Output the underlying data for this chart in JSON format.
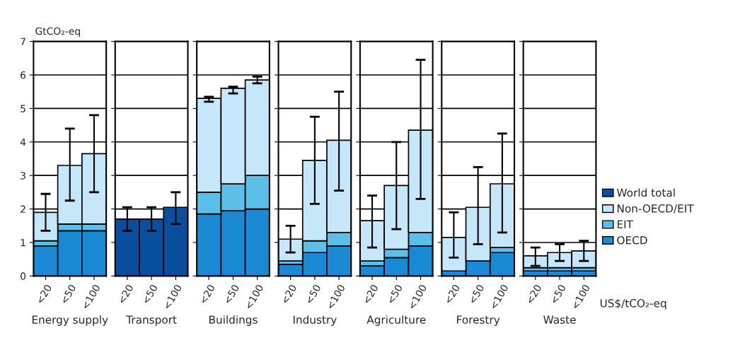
{
  "chart_data": [
    {
      "type": "bar",
      "stacked": true,
      "xlabel": "Energy supply",
      "ylabel": "GtCO₂-eq",
      "categories": [
        "<20",
        "<50",
        "<100"
      ],
      "ylim": [
        0,
        7
      ],
      "yticks": [
        0,
        1,
        2,
        3,
        4,
        5,
        6,
        7
      ],
      "grid": "y",
      "legend": "right",
      "series": [
        {
          "name": "OECD",
          "color": "#1a8ad4",
          "values": [
            0.9,
            1.35,
            1.35
          ]
        },
        {
          "name": "EIT",
          "color": "#5bbfe8",
          "values": [
            0.15,
            0.2,
            0.2
          ]
        },
        {
          "name": "Non-OECD/EIT",
          "color": "#c6e6fa",
          "values": [
            0.85,
            1.75,
            2.1
          ],
          "errors": [
            [
              1.35,
              2.45
            ],
            [
              2.25,
              4.4
            ],
            [
              2.5,
              4.8
            ]
          ]
        }
      ]
    },
    {
      "type": "bar",
      "stacked": true,
      "xlabel": "Transport",
      "categories": [
        "<20",
        "<50",
        "<100"
      ],
      "ylim": [
        0,
        7
      ],
      "yticks": [
        0,
        1,
        2,
        3,
        4,
        5,
        6,
        7
      ],
      "tick_labels": "x",
      "grid": "y",
      "legend": "right",
      "series": [
        {
          "name": "World total",
          "color": "#0a4f9e",
          "values": [
            1.7,
            1.7,
            2.05
          ],
          "errors": [
            [
              1.35,
              2.05
            ],
            [
              1.35,
              2.05
            ],
            [
              1.55,
              2.5
            ]
          ]
        }
      ]
    },
    {
      "type": "bar",
      "stacked": true,
      "xlabel": "Buildings",
      "categories": [
        "<20",
        "<50",
        "<100"
      ],
      "ylim": [
        0,
        7
      ],
      "yticks": [
        0,
        1,
        2,
        3,
        4,
        5,
        6,
        7
      ],
      "tick_labels": "x",
      "grid": "y",
      "legend": "right",
      "series": [
        {
          "name": "OECD",
          "color": "#1a8ad4",
          "values": [
            1.85,
            1.95,
            2.0
          ]
        },
        {
          "name": "EIT",
          "color": "#5bbfe8",
          "values": [
            0.65,
            0.8,
            1.0
          ]
        },
        {
          "name": "Non-OECD/EIT",
          "color": "#c6e6fa",
          "values": [
            2.8,
            2.85,
            2.85
          ],
          "errors": [
            [
              5.2,
              5.35
            ],
            [
              5.45,
              5.65
            ],
            [
              5.75,
              5.95
            ]
          ]
        }
      ]
    },
    {
      "type": "bar",
      "stacked": true,
      "xlabel": "Industry",
      "categories": [
        "<20",
        "<50",
        "<100"
      ],
      "ylim": [
        0,
        7
      ],
      "yticks": [
        0,
        1,
        2,
        3,
        4,
        5,
        6,
        7
      ],
      "tick_labels": "x",
      "grid": "y",
      "legend": "right",
      "series": [
        {
          "name": "OECD",
          "color": "#1a8ad4",
          "values": [
            0.35,
            0.7,
            0.9
          ]
        },
        {
          "name": "EIT",
          "color": "#5bbfe8",
          "values": [
            0.1,
            0.35,
            0.4
          ]
        },
        {
          "name": "Non-OECD/EIT",
          "color": "#c6e6fa",
          "values": [
            0.65,
            2.4,
            2.75
          ],
          "errors": [
            [
              0.7,
              1.5
            ],
            [
              2.15,
              4.75
            ],
            [
              2.55,
              5.5
            ]
          ]
        }
      ]
    },
    {
      "type": "bar",
      "stacked": true,
      "xlabel": "Agriculture",
      "categories": [
        "<20",
        "<50",
        "<100"
      ],
      "ylim": [
        0,
        7
      ],
      "yticks": [
        0,
        1,
        2,
        3,
        4,
        5,
        6,
        7
      ],
      "tick_labels": "x",
      "grid": "y",
      "legend": "right",
      "series": [
        {
          "name": "OECD",
          "color": "#1a8ad4",
          "values": [
            0.3,
            0.55,
            0.9
          ]
        },
        {
          "name": "EIT",
          "color": "#5bbfe8",
          "values": [
            0.15,
            0.25,
            0.4
          ]
        },
        {
          "name": "Non-OECD/EIT",
          "color": "#c6e6fa",
          "values": [
            1.2,
            1.9,
            3.05
          ],
          "errors": [
            [
              0.85,
              2.4
            ],
            [
              1.4,
              4.0
            ],
            [
              2.3,
              6.45
            ]
          ]
        }
      ]
    },
    {
      "type": "bar",
      "stacked": true,
      "xlabel": "Forestry",
      "categories": [
        "<20",
        "<50",
        "<100"
      ],
      "ylim": [
        0,
        7
      ],
      "yticks": [
        0,
        1,
        2,
        3,
        4,
        5,
        6,
        7
      ],
      "tick_labels": "x",
      "grid": "y",
      "legend": "right",
      "series": [
        {
          "name": "OECD",
          "color": "#1a8ad4",
          "values": [
            0.15,
            0.45,
            0.7
          ]
        },
        {
          "name": "EIT",
          "color": "#5bbfe8",
          "values": [
            null,
            null,
            0.15
          ]
        },
        {
          "name": "Non-OECD/EIT",
          "color": "#c6e6fa",
          "values": [
            1.0,
            1.6,
            1.9
          ],
          "errors": [
            [
              0.55,
              1.9
            ],
            [
              0.95,
              3.25
            ],
            [
              1.3,
              4.25
            ]
          ]
        }
      ]
    },
    {
      "type": "bar",
      "stacked": true,
      "xlabel": "Waste",
      "categories": [
        "<20",
        "<50",
        "<100"
      ],
      "ylim": [
        0,
        7
      ],
      "yticks": [
        0,
        1,
        2,
        3,
        4,
        5,
        6,
        7
      ],
      "tick_labels": "x",
      "grid": "y",
      "legend": "right",
      "annotations": [
        "US$/tCO₂-eq"
      ],
      "series": [
        {
          "name": "OECD",
          "color": "#1a8ad4",
          "values": [
            0.15,
            0.15,
            0.15
          ]
        },
        {
          "name": "EIT",
          "color": "#5bbfe8",
          "values": [
            0.1,
            0.1,
            0.1
          ]
        },
        {
          "name": "Non-OECD/EIT",
          "color": "#c6e6fa",
          "values": [
            0.35,
            0.45,
            0.5
          ],
          "errors": [
            [
              0.3,
              0.85
            ],
            [
              0.45,
              0.95
            ],
            [
              0.45,
              1.05
            ]
          ]
        }
      ]
    }
  ]
}
